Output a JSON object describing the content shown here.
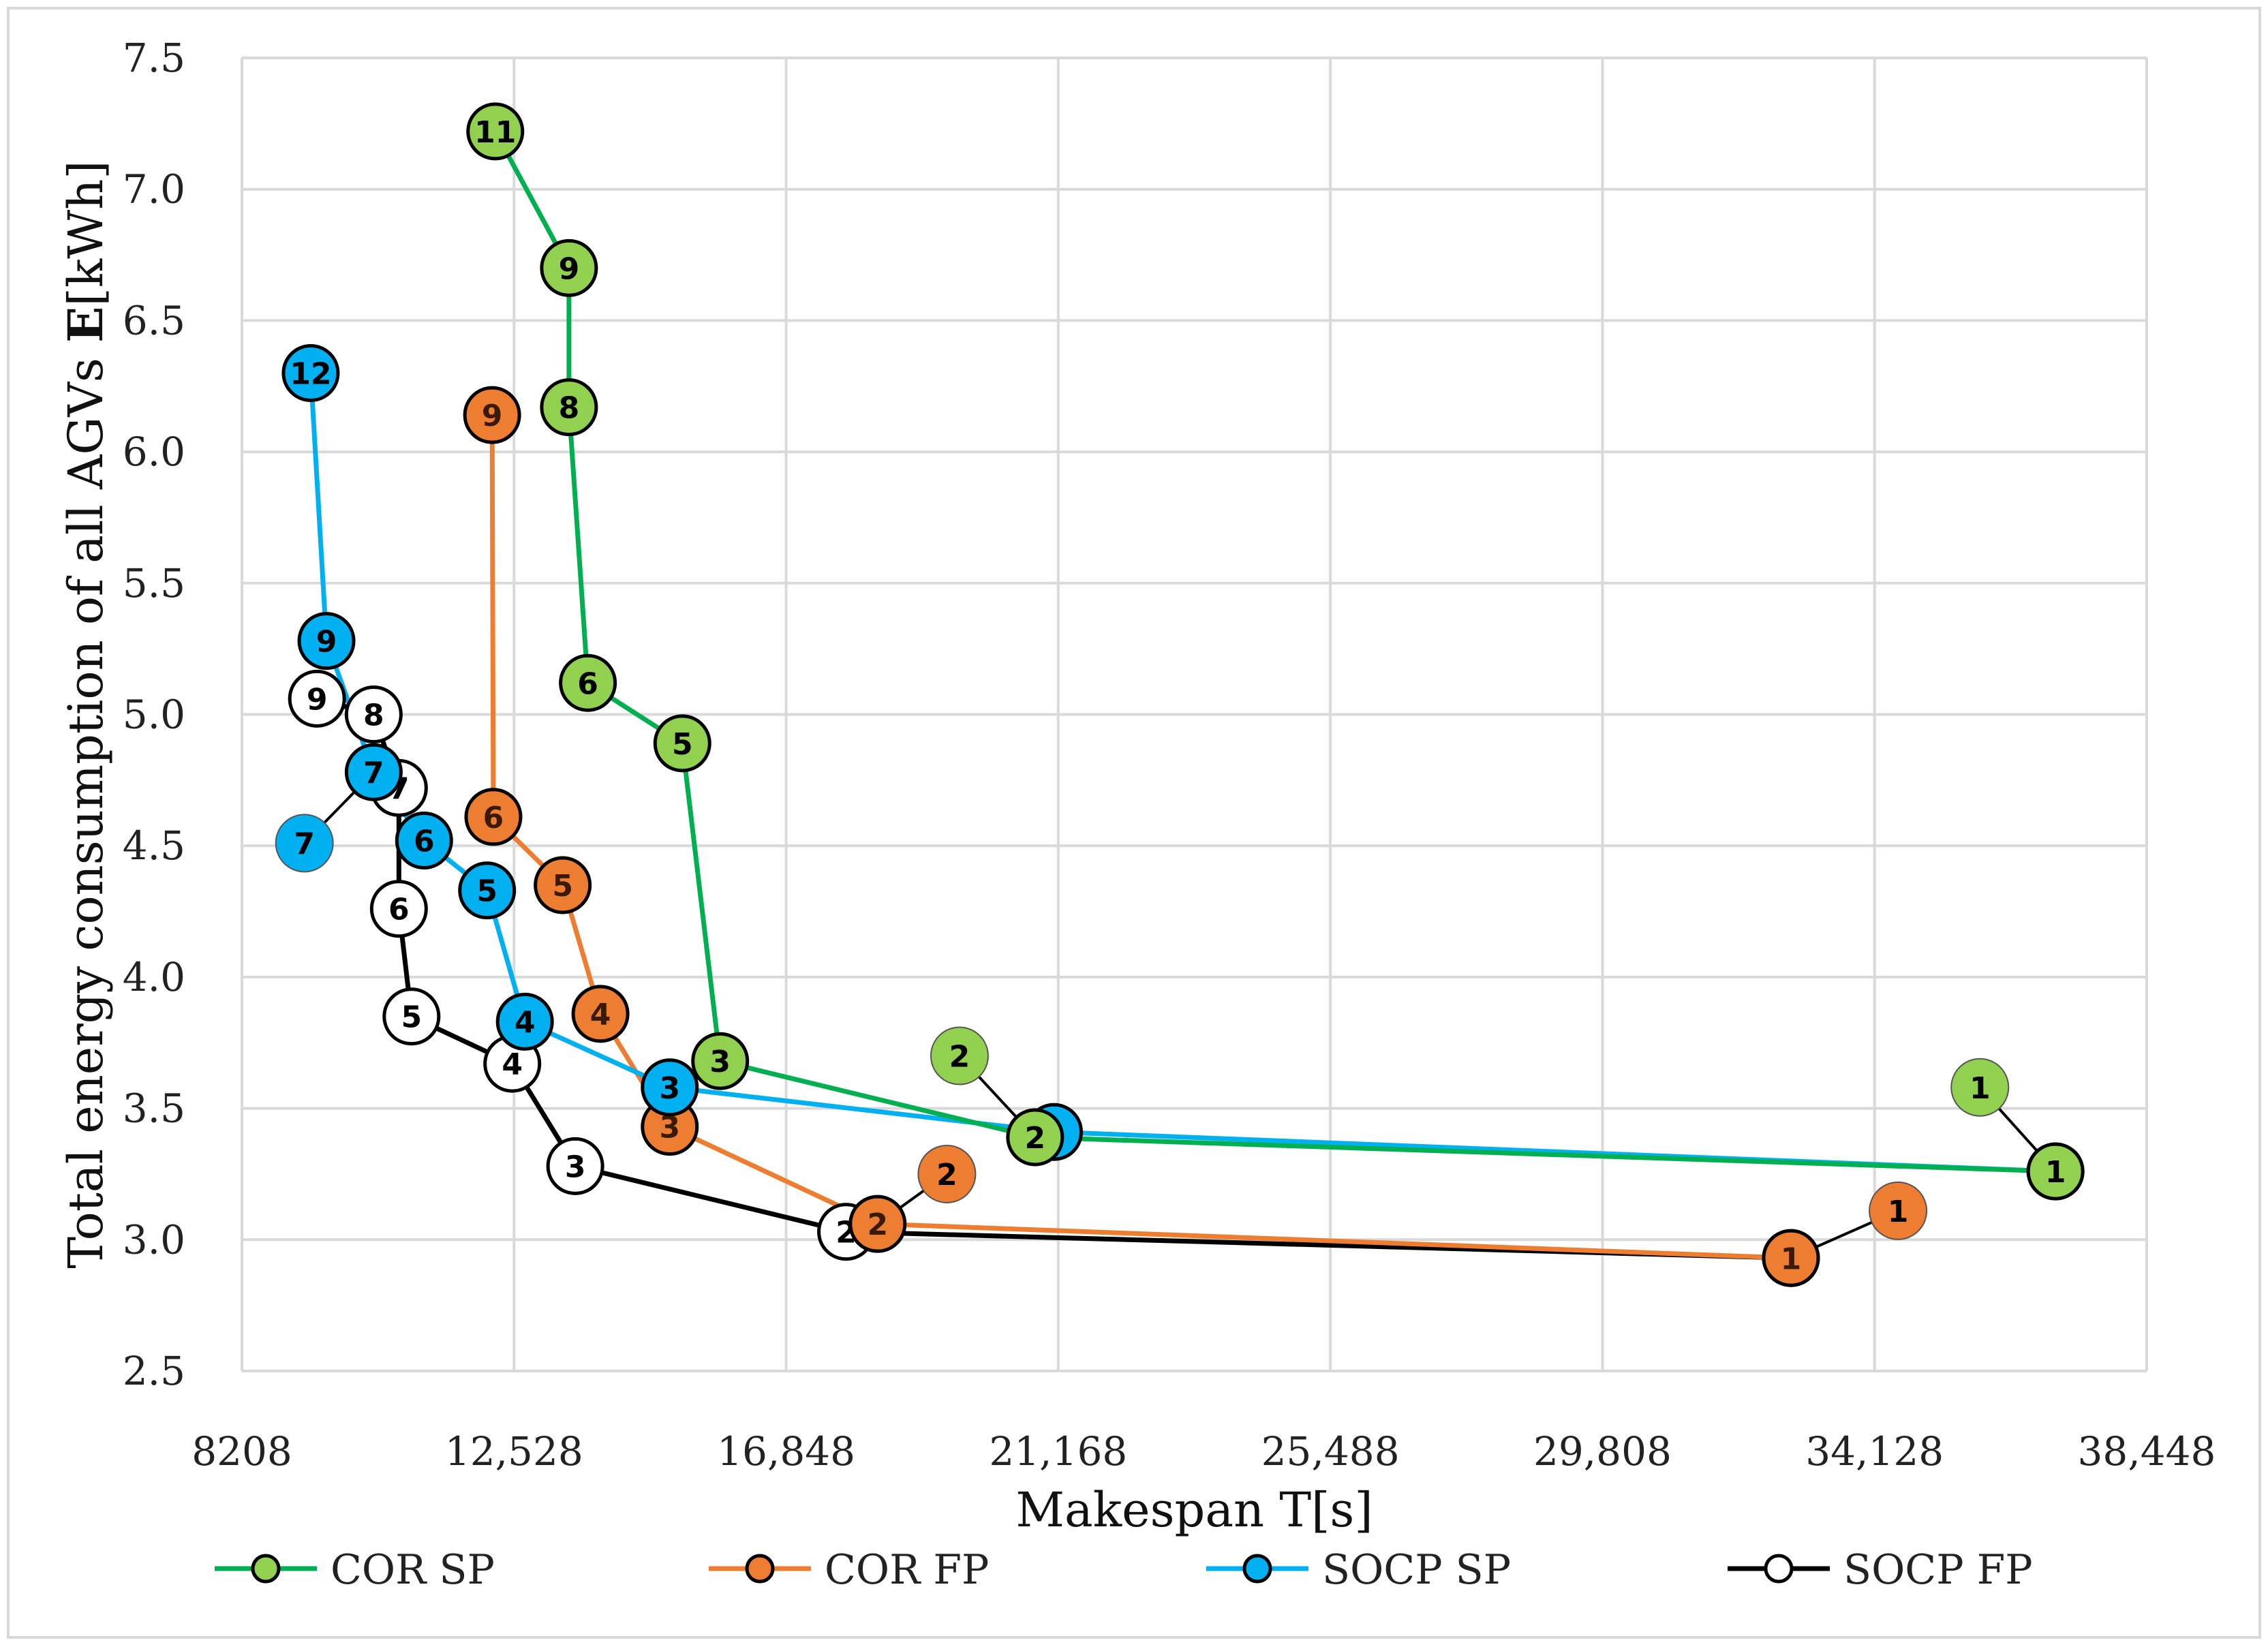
{
  "chart_data": {
    "type": "scatter",
    "title": "",
    "xlabel": "Makespan T[s]",
    "ylabel_prefix": "Total energy  consumption of all AGVs ",
    "ylabel_symbol": "E",
    "ylabel_unit": "[kWh]",
    "xlim": [
      8208,
      38448
    ],
    "ylim": [
      2.5,
      7.5
    ],
    "x_ticks": [
      8208,
      12528,
      16848,
      21168,
      25488,
      29808,
      34128,
      38448
    ],
    "x_tick_labels": [
      "8208",
      "12,528",
      "16,848",
      "21,168",
      "25,488",
      "29,808",
      "34,128",
      "38,448"
    ],
    "y_ticks": [
      2.5,
      3.0,
      3.5,
      4.0,
      4.5,
      5.0,
      5.5,
      6.0,
      6.5,
      7.0,
      7.5
    ],
    "y_tick_labels": [
      "2.5",
      "3.0",
      "3.5",
      "4.0",
      "4.5",
      "5.0",
      "5.5",
      "6.0",
      "6.5",
      "7.0",
      "7.5"
    ],
    "grid": true,
    "legend_position": "bottom",
    "series": [
      {
        "name": "COR SP",
        "line_color": "#00b050",
        "marker_color": "#92d050",
        "points": [
          {
            "label": "11",
            "x": 12230,
            "y": 7.22
          },
          {
            "label": "9",
            "x": 13400,
            "y": 6.7
          },
          {
            "label": "8",
            "x": 13400,
            "y": 6.17
          },
          {
            "label": "6",
            "x": 13700,
            "y": 5.12
          },
          {
            "label": "5",
            "x": 15200,
            "y": 4.89
          },
          {
            "label": "3",
            "x": 15800,
            "y": 3.68
          },
          {
            "label": "2",
            "x": 20800,
            "y": 3.39
          },
          {
            "label": "1",
            "x": 37000,
            "y": 3.26
          }
        ]
      },
      {
        "name": "COR FP",
        "line_color": "#ed7d31",
        "marker_color": "#ed7d31",
        "points": [
          {
            "label": "9",
            "x": 12180,
            "y": 6.14
          },
          {
            "label": "6",
            "x": 12200,
            "y": 4.61
          },
          {
            "label": "5",
            "x": 13300,
            "y": 4.35
          },
          {
            "label": "4",
            "x": 13900,
            "y": 3.86
          },
          {
            "label": "3",
            "x": 15000,
            "y": 3.43
          },
          {
            "label": "2",
            "x": 18300,
            "y": 3.06
          },
          {
            "label": "1",
            "x": 32800,
            "y": 2.93
          }
        ]
      },
      {
        "name": "SOCP SP",
        "line_color": "#00b0f0",
        "marker_color": "#00b0f0",
        "points": [
          {
            "label": "12",
            "x": 9300,
            "y": 6.3
          },
          {
            "label": "9",
            "x": 9550,
            "y": 5.28
          },
          {
            "label": "7",
            "x": 10300,
            "y": 4.78
          },
          {
            "label": "6",
            "x": 11100,
            "y": 4.52
          },
          {
            "label": "5",
            "x": 12100,
            "y": 4.33
          },
          {
            "label": "4",
            "x": 12700,
            "y": 3.83
          },
          {
            "label": "3",
            "x": 15000,
            "y": 3.58
          },
          {
            "label": "2",
            "x": 21100,
            "y": 3.41
          },
          {
            "label": "1",
            "x": 37000,
            "y": 3.26
          }
        ]
      },
      {
        "name": "SOCP FP",
        "line_color": "#000000",
        "marker_color": "#ffffff",
        "points": [
          {
            "label": "9",
            "x": 9400,
            "y": 5.06
          },
          {
            "label": "8",
            "x": 10300,
            "y": 5.0
          },
          {
            "label": "7",
            "x": 10700,
            "y": 4.72
          },
          {
            "label": "6",
            "x": 10700,
            "y": 4.26
          },
          {
            "label": "5",
            "x": 10900,
            "y": 3.85
          },
          {
            "label": "4",
            "x": 12500,
            "y": 3.67
          },
          {
            "label": "3",
            "x": 13500,
            "y": 3.28
          },
          {
            "label": "2",
            "x": 17800,
            "y": 3.03
          },
          {
            "label": "1",
            "x": 32800,
            "y": 2.93
          }
        ]
      }
    ],
    "annotations": [
      {
        "series": "COR SP",
        "label": "2",
        "x": 19600,
        "y": 3.7
      },
      {
        "series": "COR SP",
        "label": "1",
        "x": 35800,
        "y": 3.58
      },
      {
        "series": "COR FP",
        "label": "2",
        "x": 19400,
        "y": 3.25
      },
      {
        "series": "COR FP",
        "label": "1",
        "x": 34500,
        "y": 3.11
      },
      {
        "series": "SOCP SP",
        "label": "7",
        "x": 9200,
        "y": 4.51
      }
    ]
  }
}
